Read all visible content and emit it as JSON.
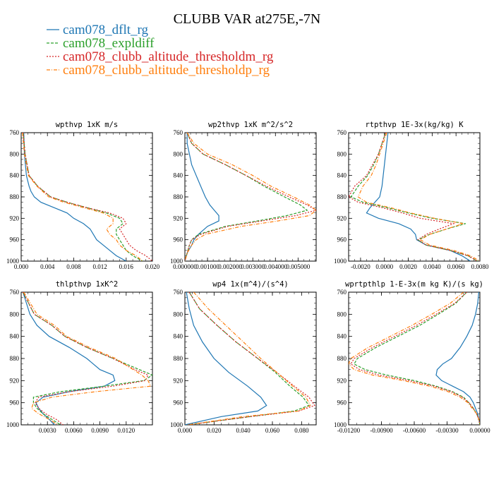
{
  "title": "CLUBB VAR at275E,-7N",
  "legend": [
    {
      "label": "cam078_dflt_rg",
      "color": "#1f77b4"
    },
    {
      "label": "cam078_expldiff",
      "color": "#2ca02c"
    },
    {
      "label": "cam078_clubb_altitude_thresholdm_rg",
      "color": "#d62728"
    },
    {
      "label": "cam078_clubb_altitude_thresholdp_rg",
      "color": "#ff7f0e"
    }
  ],
  "chart_data": [
    {
      "type": "line",
      "title": "wpthvp  1xK m/s",
      "xlim": [
        0,
        0.02
      ],
      "ylim": [
        760,
        1000
      ],
      "xticks": [
        "0.000",
        "0.004",
        "0.008",
        "0.012",
        "0.016",
        "0.020"
      ],
      "yticks": [
        "760",
        "800",
        "840",
        "880",
        "920",
        "960",
        "1000"
      ],
      "y": [
        760,
        800,
        840,
        860,
        870,
        880,
        890,
        900,
        910,
        920,
        930,
        940,
        950,
        960,
        970,
        980,
        990,
        1000
      ],
      "series": [
        {
          "x": [
            0.0004,
            0.0005,
            0.0008,
            0.0012,
            0.0015,
            0.002,
            0.003,
            0.005,
            0.007,
            0.008,
            0.0095,
            0.0105,
            0.011,
            0.0115,
            0.0125,
            0.0135,
            0.0145,
            0.016
          ]
        },
        {
          "x": [
            0.0003,
            0.0006,
            0.0012,
            0.0025,
            0.0035,
            0.0045,
            0.007,
            0.01,
            0.013,
            0.015,
            0.0155,
            0.0145,
            0.0145,
            0.015,
            0.0155,
            0.016,
            0.017,
            0.0185
          ]
        },
        {
          "x": [
            0.0003,
            0.0006,
            0.0012,
            0.0025,
            0.0035,
            0.0045,
            0.007,
            0.01,
            0.0135,
            0.0155,
            0.016,
            0.015,
            0.0155,
            0.016,
            0.0165,
            0.0175,
            0.019,
            0.02
          ]
        },
        {
          "x": [
            0.0002,
            0.0005,
            0.0011,
            0.0024,
            0.0033,
            0.0042,
            0.0065,
            0.0095,
            0.0125,
            0.014,
            0.014,
            0.013,
            0.0135,
            0.0145,
            0.015,
            0.016,
            0.0175,
            0.0185
          ]
        }
      ]
    },
    {
      "type": "line",
      "title": "wp2thvp  1xK m^2/s^2",
      "xlim": [
        0,
        0.0058
      ],
      "ylim": [
        760,
        1000
      ],
      "xticks": [
        "0.000000",
        "0.001000",
        "0.002000",
        "0.003000",
        "0.004000",
        "0.005000"
      ],
      "yticks": [
        "760",
        "800",
        "840",
        "880",
        "920",
        "960",
        "1000"
      ],
      "y": [
        760,
        780,
        800,
        820,
        840,
        860,
        880,
        895,
        905,
        915,
        925,
        935,
        950,
        960,
        970,
        985,
        1000
      ],
      "series": [
        {
          "x": [
            0.0001,
            0.0001,
            0.0002,
            0.0003,
            0.0005,
            0.0007,
            0.0009,
            0.0011,
            0.0013,
            0.0015,
            0.0015,
            0.001,
            0.0006,
            0.0004,
            0.0003,
            0.0001,
            0.0
          ]
        },
        {
          "x": [
            0.0001,
            0.0003,
            0.0008,
            0.0018,
            0.0027,
            0.0035,
            0.0044,
            0.0051,
            0.0054,
            0.0045,
            0.0032,
            0.0018,
            0.0006,
            0.0003,
            0.0002,
            0.0001,
            0.0
          ]
        },
        {
          "x": [
            0.0001,
            0.0003,
            0.0008,
            0.0018,
            0.0027,
            0.0036,
            0.0046,
            0.0054,
            0.0058,
            0.0049,
            0.0034,
            0.0019,
            0.0007,
            0.0003,
            0.0002,
            0.0001,
            0.0
          ]
        },
        {
          "x": [
            0.0001,
            0.0004,
            0.001,
            0.0021,
            0.003,
            0.0038,
            0.0048,
            0.0055,
            0.0058,
            0.0055,
            0.0041,
            0.0025,
            0.0009,
            0.0005,
            0.0003,
            0.0001,
            0.0
          ]
        }
      ]
    },
    {
      "type": "line",
      "title": "rtpthvp  1E-3x(kg/kg) K",
      "xlim": [
        -0.003,
        0.008
      ],
      "ylim": [
        760,
        1000
      ],
      "xticks": [
        "-0.0020",
        "0.0000",
        "0.0020",
        "0.0040",
        "0.0060",
        "0.0080"
      ],
      "yticks": [
        "760",
        "800",
        "840",
        "880",
        "920",
        "960",
        "1000"
      ],
      "y": [
        760,
        780,
        800,
        820,
        840,
        860,
        880,
        890,
        900,
        910,
        920,
        930,
        940,
        950,
        960,
        970,
        980,
        990,
        1000
      ],
      "series": [
        {
          "x": [
            0.0003,
            0.0002,
            0.0001,
            0.0,
            -0.0001,
            -0.0002,
            -0.0004,
            -0.0008,
            -0.0012,
            -0.0015,
            -0.0005,
            0.0012,
            0.0022,
            0.0026,
            0.0027,
            0.0035,
            0.0055,
            0.0065,
            0.0072
          ]
        },
        {
          "x": [
            0.0001,
            -0.0002,
            -0.0005,
            -0.0009,
            -0.0014,
            -0.0022,
            -0.0028,
            -0.0018,
            0.0002,
            0.002,
            0.004,
            0.0068,
            0.0052,
            0.0038,
            0.0028,
            0.0035,
            0.0055,
            0.007,
            0.0078
          ]
        },
        {
          "x": [
            0.0001,
            -0.0002,
            -0.0005,
            -0.001,
            -0.0015,
            -0.0025,
            -0.003,
            -0.0022,
            -0.0002,
            0.0015,
            0.003,
            0.0058,
            0.0046,
            0.0035,
            0.0028,
            0.0035,
            0.0055,
            0.007,
            0.0078
          ]
        },
        {
          "x": [
            0.0002,
            -0.0001,
            -0.0004,
            -0.0007,
            -0.0011,
            -0.0018,
            -0.0022,
            -0.0015,
            0.0005,
            0.0022,
            0.0042,
            0.0066,
            0.0052,
            0.0038,
            0.003,
            0.0038,
            0.0058,
            0.0072,
            0.008
          ]
        }
      ]
    },
    {
      "type": "line",
      "title": "thlpthvp  1xK^2",
      "xlim": [
        0,
        0.015
      ],
      "ylim": [
        760,
        1000
      ],
      "xticks": [
        "0.0030",
        "0.0060",
        "0.0090",
        "0.0120"
      ],
      "yticks": [
        "760",
        "800",
        "840",
        "880",
        "920",
        "960",
        "1000"
      ],
      "y": [
        760,
        800,
        820,
        840,
        860,
        880,
        900,
        910,
        920,
        930,
        940,
        950,
        960,
        970,
        980,
        990,
        1000
      ],
      "series": [
        {
          "x": [
            0.0002,
            0.001,
            0.0018,
            0.0032,
            0.0055,
            0.0075,
            0.009,
            0.0105,
            0.0107,
            0.0095,
            0.0055,
            0.0025,
            0.0017,
            0.002,
            0.0025,
            0.0032,
            0.0038
          ]
        },
        {
          "x": [
            0.0002,
            0.0015,
            0.0035,
            0.005,
            0.0075,
            0.0105,
            0.0135,
            0.015,
            0.014,
            0.0095,
            0.0045,
            0.0014,
            0.0014,
            0.0018,
            0.0025,
            0.0035,
            0.0045
          ]
        },
        {
          "x": [
            0.0002,
            0.0015,
            0.0035,
            0.005,
            0.0075,
            0.0105,
            0.013,
            0.0145,
            0.0142,
            0.0105,
            0.0055,
            0.002,
            0.0016,
            0.002,
            0.0028,
            0.004,
            0.0048
          ]
        },
        {
          "x": [
            0.0003,
            0.0018,
            0.0038,
            0.0052,
            0.0078,
            0.0108,
            0.0128,
            0.0138,
            0.0145,
            0.0148,
            0.0085,
            0.0035,
            0.0014,
            0.0012,
            0.002,
            0.0032,
            0.0042
          ]
        }
      ]
    },
    {
      "type": "line",
      "title": "wp4  1x(m^4)/(s^4)",
      "xlim": [
        0,
        0.09
      ],
      "ylim": [
        760,
        1000
      ],
      "xticks": [
        "0.000",
        "0.020",
        "0.040",
        "0.060",
        "0.080"
      ],
      "yticks": [
        "760",
        "800",
        "840",
        "880",
        "920",
        "960",
        "1000"
      ],
      "y": [
        760,
        790,
        820,
        850,
        880,
        905,
        930,
        950,
        965,
        975,
        985,
        1000
      ],
      "series": [
        {
          "x": [
            0.001,
            0.003,
            0.006,
            0.012,
            0.02,
            0.03,
            0.043,
            0.052,
            0.056,
            0.05,
            0.025,
            0.0
          ]
        },
        {
          "x": [
            0.003,
            0.01,
            0.022,
            0.035,
            0.05,
            0.062,
            0.072,
            0.081,
            0.085,
            0.075,
            0.045,
            0.002
          ]
        },
        {
          "x": [
            0.003,
            0.01,
            0.022,
            0.035,
            0.05,
            0.063,
            0.075,
            0.085,
            0.089,
            0.078,
            0.045,
            0.002
          ]
        },
        {
          "x": [
            0.006,
            0.016,
            0.028,
            0.04,
            0.052,
            0.063,
            0.074,
            0.083,
            0.086,
            0.078,
            0.04,
            0.002
          ]
        }
      ]
    },
    {
      "type": "line",
      "title": "wprtpthlp  1-E-3x(m kg K)/(s kg)",
      "xlim": [
        -0.012,
        0.0
      ],
      "ylim": [
        760,
        1000
      ],
      "xticks": [
        "-0.01200",
        "-0.00900",
        "-0.00600",
        "-0.00300",
        "0.00000"
      ],
      "yticks": [
        "760",
        "800",
        "840",
        "880",
        "920",
        "960",
        "1000"
      ],
      "y": [
        760,
        780,
        800,
        820,
        840,
        860,
        880,
        890,
        900,
        910,
        920,
        930,
        940,
        950,
        960,
        970,
        980,
        990,
        1000
      ],
      "series": [
        {
          "x": [
            -0.0001,
            -0.0002,
            -0.0004,
            -0.0007,
            -0.0012,
            -0.0018,
            -0.0026,
            -0.0034,
            -0.0039,
            -0.004,
            -0.0035,
            -0.0025,
            -0.0015,
            -0.0009,
            -0.0006,
            -0.0004,
            -0.0002,
            -0.0001,
            0.0
          ]
        },
        {
          "x": [
            -0.0012,
            -0.0022,
            -0.0038,
            -0.0055,
            -0.0075,
            -0.0095,
            -0.0112,
            -0.0115,
            -0.0105,
            -0.0085,
            -0.006,
            -0.004,
            -0.0025,
            -0.0015,
            -0.001,
            -0.0006,
            -0.0003,
            -0.0001,
            0.0
          ]
        },
        {
          "x": [
            -0.0012,
            -0.0023,
            -0.004,
            -0.0058,
            -0.0078,
            -0.0098,
            -0.0115,
            -0.0118,
            -0.011,
            -0.0092,
            -0.0065,
            -0.0042,
            -0.0026,
            -0.0016,
            -0.001,
            -0.0006,
            -0.0003,
            -0.0001,
            0.0
          ]
        },
        {
          "x": [
            -0.0015,
            -0.0027,
            -0.0044,
            -0.0062,
            -0.0082,
            -0.0102,
            -0.0118,
            -0.012,
            -0.0115,
            -0.0098,
            -0.007,
            -0.0046,
            -0.0029,
            -0.0018,
            -0.0011,
            -0.0007,
            -0.0003,
            -0.0001,
            0.0
          ]
        }
      ]
    }
  ]
}
